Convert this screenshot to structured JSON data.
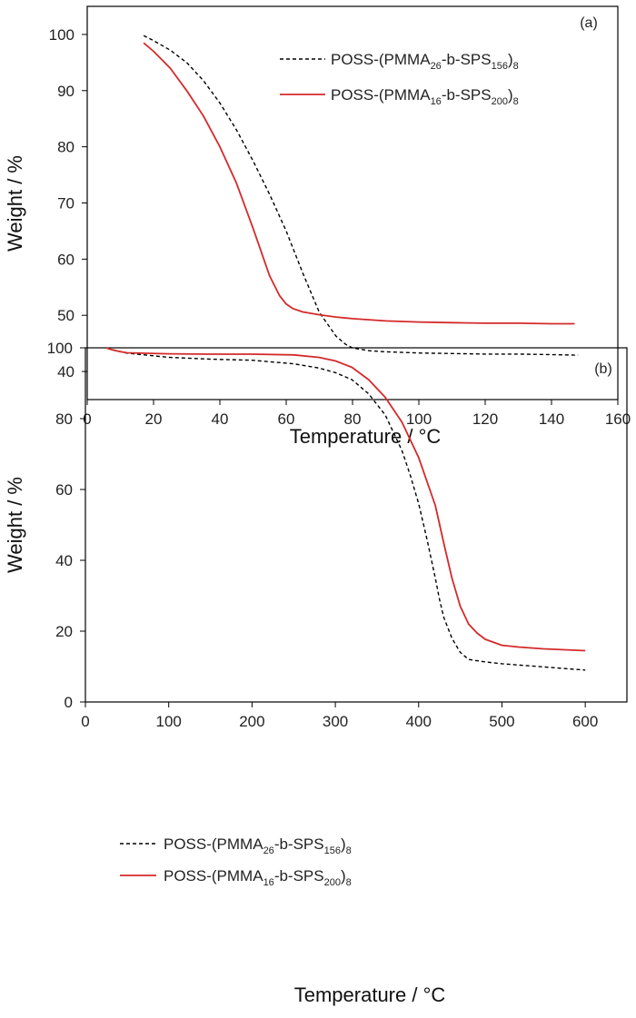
{
  "chart_data": [
    {
      "type": "line",
      "panel_label": "(a)",
      "xlabel": "Temperature / °C",
      "ylabel": "Weight / %",
      "xlim": [
        0,
        160
      ],
      "ylim": [
        35,
        105
      ],
      "xticks": [
        "0",
        "20",
        "40",
        "60",
        "80",
        "100",
        "120",
        "140",
        "160"
      ],
      "yticks": [
        "40",
        "50",
        "60",
        "70",
        "80",
        "90",
        "100"
      ],
      "legend_position": "top-right",
      "series": [
        {
          "name": "POSS-(PMMA26-b-SPS156)8",
          "legend": {
            "pre": "POSS-(PMMA",
            "sub1": "26",
            "mid": "-b-SPS",
            "sub2": "156",
            "post": ")",
            "sub3": "8"
          },
          "style": "dashed",
          "color": "#000000",
          "x": [
            17,
            20,
            25,
            30,
            35,
            40,
            45,
            50,
            55,
            60,
            65,
            70,
            75,
            78,
            80,
            85,
            90,
            100,
            110,
            120,
            130,
            140,
            148
          ],
          "y": [
            99.8,
            98.9,
            97.2,
            95.0,
            91.8,
            87.8,
            83.0,
            77.5,
            71.5,
            65.0,
            57.5,
            50.5,
            46.3,
            44.8,
            44.2,
            43.7,
            43.5,
            43.3,
            43.2,
            43.1,
            43.1,
            43.0,
            42.9
          ]
        },
        {
          "name": "POSS-(PMMA16-b-SPS200)8",
          "legend": {
            "pre": "POSS-(PMMA",
            "sub1": "16",
            "mid": "-b-SPS",
            "sub2": "200",
            "post": ")",
            "sub3": "8"
          },
          "style": "solid",
          "color": "#d42a2a",
          "x": [
            17,
            20,
            25,
            30,
            35,
            40,
            45,
            50,
            55,
            58,
            60,
            62,
            65,
            70,
            75,
            80,
            90,
            100,
            110,
            120,
            130,
            140,
            147
          ],
          "y": [
            98.5,
            97.0,
            94.0,
            90.0,
            85.5,
            80.0,
            73.5,
            65.5,
            57.0,
            53.5,
            52.0,
            51.2,
            50.6,
            50.1,
            49.7,
            49.4,
            49.0,
            48.8,
            48.7,
            48.6,
            48.6,
            48.5,
            48.5
          ]
        }
      ]
    },
    {
      "type": "line",
      "panel_label": "(b)",
      "xlabel": "Temperature / °C",
      "ylabel": "Weight / %",
      "xlim": [
        0,
        650
      ],
      "ylim": [
        0,
        100
      ],
      "xticks": [
        "0",
        "100",
        "200",
        "300",
        "400",
        "500",
        "600"
      ],
      "yticks": [
        "0",
        "20",
        "40",
        "60",
        "80",
        "100"
      ],
      "legend_position": "bottom-left",
      "series": [
        {
          "name": "POSS-(PMMA26-b-SPS156)8",
          "legend": {
            "pre": "POSS-(PMMA",
            "sub1": "26",
            "mid": "-b-SPS",
            "sub2": "156",
            "post": ")",
            "sub3": "8"
          },
          "style": "dashed",
          "color": "#000000",
          "x": [
            25,
            30,
            50,
            100,
            150,
            200,
            250,
            280,
            300,
            320,
            340,
            360,
            380,
            390,
            400,
            410,
            420,
            425,
            430,
            440,
            450,
            460,
            480,
            500,
            550,
            600
          ],
          "y": [
            100,
            99.5,
            98.5,
            97.3,
            96.8,
            96.5,
            95.5,
            94.3,
            93.0,
            91.0,
            87.0,
            81.0,
            71.0,
            64.0,
            56.0,
            46.0,
            35.0,
            29.0,
            24.0,
            18.0,
            14.0,
            12.0,
            11.3,
            10.8,
            9.9,
            9.0
          ]
        },
        {
          "name": "POSS-(PMMA16-b-SPS200)8",
          "legend": {
            "pre": "POSS-(PMMA",
            "sub1": "16",
            "mid": "-b-SPS",
            "sub2": "200",
            "post": ")",
            "sub3": "8"
          },
          "style": "solid",
          "color": "#d42a2a",
          "x": [
            25,
            30,
            40,
            50,
            100,
            150,
            200,
            250,
            280,
            300,
            320,
            340,
            360,
            380,
            400,
            420,
            430,
            440,
            450,
            460,
            470,
            480,
            500,
            520,
            550,
            600
          ],
          "y": [
            100,
            99.6,
            99.0,
            98.6,
            98.3,
            98.2,
            98.2,
            98.0,
            97.3,
            96.3,
            94.5,
            91.0,
            86.0,
            79.0,
            69.0,
            55.5,
            45.0,
            35.0,
            27.0,
            22.0,
            19.5,
            17.7,
            16.0,
            15.5,
            15.0,
            14.5
          ]
        }
      ]
    }
  ]
}
